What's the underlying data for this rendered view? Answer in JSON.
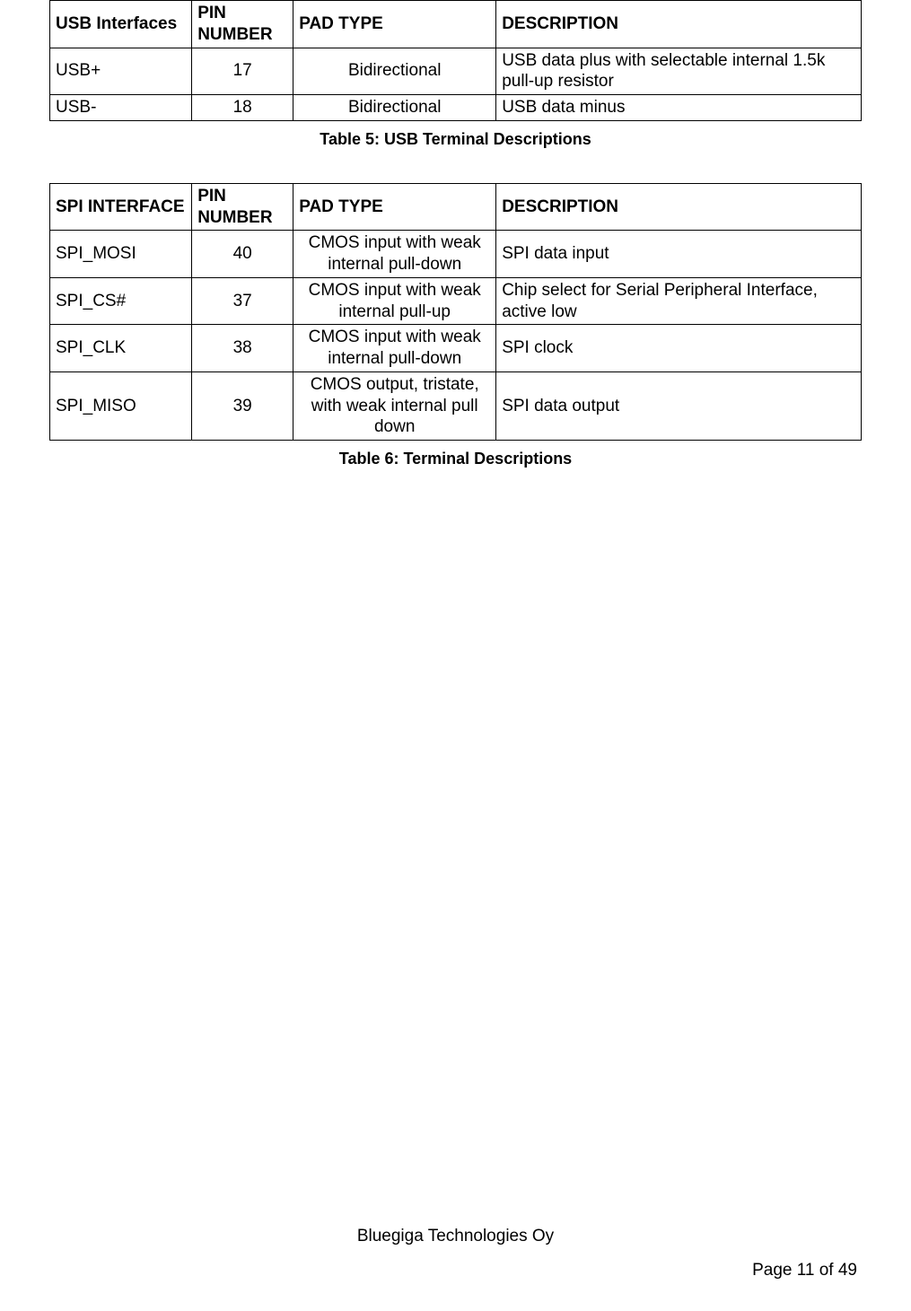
{
  "colors": {
    "text": "#000000",
    "border": "#000000",
    "background": "#ffffff"
  },
  "typography": {
    "body_font_family": "Verdana",
    "body_font_size_pt": 14,
    "caption_font_family": "Arial",
    "caption_font_size_pt": 13,
    "caption_font_weight": "bold",
    "footer_font_family": "Arial",
    "footer_font_size_pt": 14
  },
  "table1": {
    "type": "table",
    "column_widths_pct": [
      17.5,
      12.5,
      25,
      45
    ],
    "column_alignments": [
      "left",
      "center",
      "center",
      "left"
    ],
    "headers": {
      "c0": "USB Interfaces",
      "c1": "PIN NUMBER",
      "c2": "PAD TYPE",
      "c3": "DESCRIPTION"
    },
    "rows": {
      "r0": {
        "c0": "USB+",
        "c1": "17",
        "c2": "Bidirectional",
        "c3": "USB data plus with selectable internal 1.5k pull-up resistor"
      },
      "r1": {
        "c0": "USB-",
        "c1": "18",
        "c2": "Bidirectional",
        "c3": "USB data minus"
      }
    },
    "caption": "Table 5: USB Terminal Descriptions"
  },
  "table2": {
    "type": "table",
    "column_widths_pct": [
      17.5,
      12.5,
      25,
      45
    ],
    "column_alignments": [
      "left",
      "center",
      "center",
      "left"
    ],
    "headers": {
      "c0": "SPI INTERFACE",
      "c1": "PIN NUMBER",
      "c2": "PAD TYPE",
      "c3": "DESCRIPTION"
    },
    "rows": {
      "r0": {
        "c0": "SPI_MOSI",
        "c1": "40",
        "c2": "CMOS input with weak internal pull-down",
        "c3": "SPI data input"
      },
      "r1": {
        "c0": "SPI_CS#",
        "c1": "37",
        "c2": "CMOS input with weak internal pull-up",
        "c3": "Chip select for Serial Peripheral Interface, active low"
      },
      "r2": {
        "c0": "SPI_CLK",
        "c1": "38",
        "c2": "CMOS input with weak internal pull-down",
        "c3": "SPI clock"
      },
      "r3": {
        "c0": "SPI_MISO",
        "c1": "39",
        "c2": "CMOS output, tristate, with weak internal pull down",
        "c3": "SPI data output"
      }
    },
    "caption": "Table 6: Terminal Descriptions"
  },
  "footer": {
    "company": "Bluegiga Technologies Oy",
    "page": "Page 11 of 49"
  }
}
